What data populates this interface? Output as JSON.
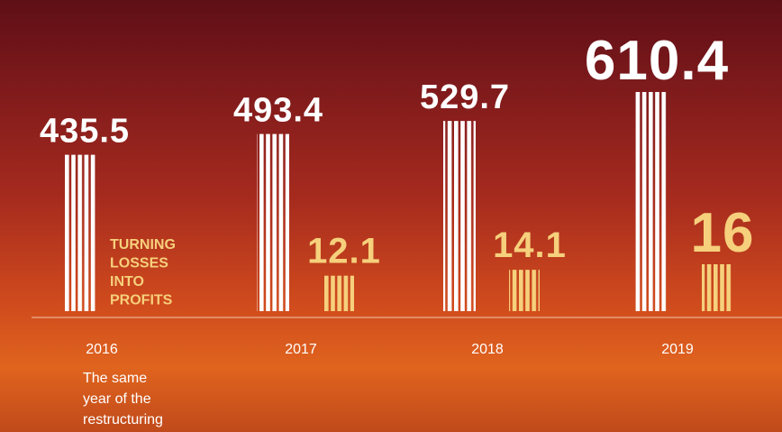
{
  "chart_data": {
    "type": "bar",
    "categories": [
      "2016",
      "2017",
      "2018",
      "2019"
    ],
    "series": [
      {
        "color": "#ffffff",
        "values": [
          435.5,
          493.4,
          529.7,
          610.4
        ]
      },
      {
        "color": "#f6d07c",
        "values": [
          null,
          12.1,
          14.1,
          16
        ]
      }
    ],
    "annotations": [
      {
        "color": "#f6d07c",
        "lines": [
          "TURNING",
          "LOSSES",
          "INTO",
          "PROFITS"
        ]
      },
      {
        "color": "#ffffff",
        "lines": [
          "The same",
          "year of the",
          "restructuring"
        ]
      }
    ]
  }
}
